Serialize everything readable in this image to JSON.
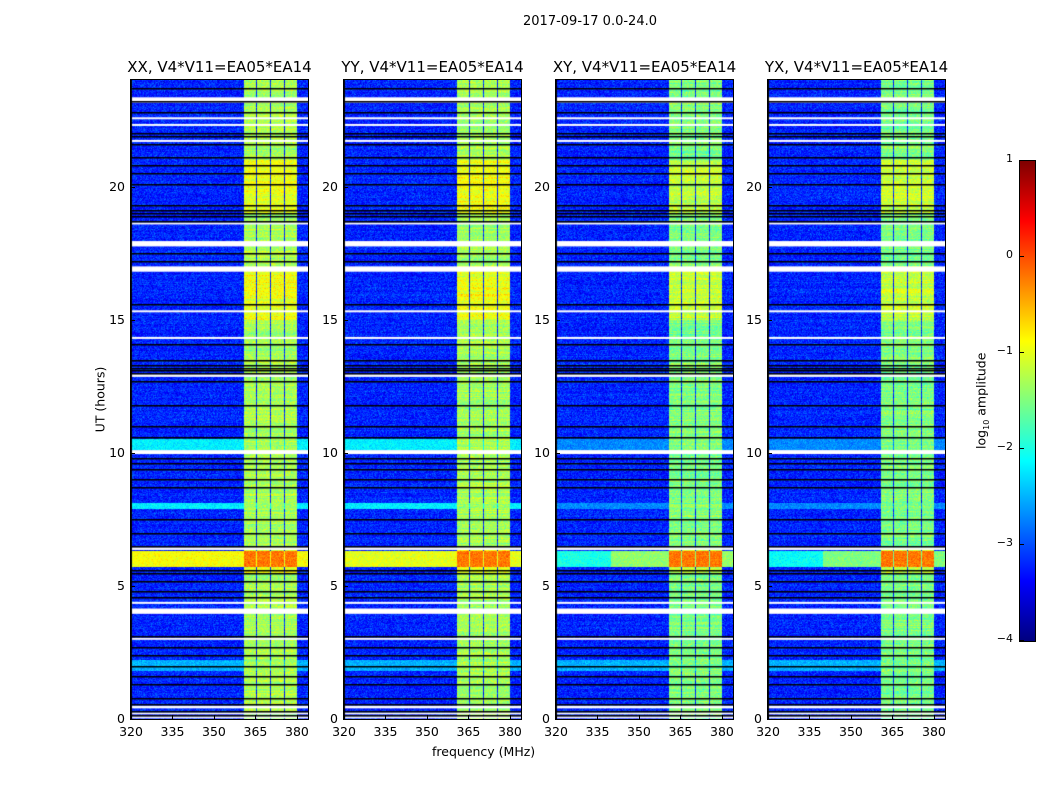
{
  "chart_data": {
    "type": "heatmap",
    "title": "2017-09-17 0.0-24.0",
    "xlabel": "frequency (MHz)",
    "ylabel": "UT (hours)",
    "xlim": [
      320,
      384
    ],
    "ylim": [
      0,
      24
    ],
    "xticks": [
      320,
      335,
      350,
      365,
      380
    ],
    "yticks": [
      0,
      5,
      10,
      15,
      20
    ],
    "colorbar": {
      "label_main": "log",
      "label_sub": "10",
      "label_end": " amplitude",
      "range": [
        -4,
        1
      ],
      "ticks": [
        -4,
        -3,
        -2,
        -1,
        0,
        1
      ],
      "colormap": "jet"
    },
    "panels": [
      {
        "title": "XX, V4*V11=EA05*EA14",
        "band_level": -1.3,
        "event_level": -0.9
      },
      {
        "title": "YY, V4*V11=EA05*EA14",
        "band_level": -1.3,
        "event_level": -1.0
      },
      {
        "title": "XY, V4*V11=EA05*EA14",
        "band_level": -1.5,
        "event_level": -1.4
      },
      {
        "title": "YX, V4*V11=EA05*EA14",
        "band_level": -1.5,
        "event_level": -1.5
      }
    ],
    "background_level": -3.2,
    "band_subbands_mhz": [
      [
        360.8,
        365.2
      ],
      [
        365.6,
        370.2
      ],
      [
        370.6,
        375.3
      ],
      [
        375.7,
        380.2
      ]
    ],
    "rfi_events_hours": [
      [
        5.7,
        6.3
      ],
      [
        7.9,
        8.1
      ],
      [
        10.1,
        10.5
      ]
    ],
    "flagged_white_hours": [
      [
        0.05,
        0.1
      ],
      [
        0.2,
        0.25
      ],
      [
        0.4,
        0.5
      ],
      [
        3.0,
        3.05
      ],
      [
        3.95,
        4.15
      ],
      [
        4.35,
        4.4
      ],
      [
        6.35,
        6.45
      ],
      [
        9.95,
        10.1
      ],
      [
        12.85,
        12.95
      ],
      [
        14.3,
        14.35
      ],
      [
        15.3,
        15.35
      ],
      [
        16.8,
        17.0
      ],
      [
        17.75,
        17.95
      ],
      [
        18.6,
        18.65
      ],
      [
        21.7,
        21.75
      ],
      [
        22.3,
        22.35
      ],
      [
        22.55,
        22.6
      ],
      [
        23.15,
        23.35
      ]
    ],
    "flagged_black_hours": [
      0.15,
      0.3,
      0.55,
      0.8,
      1.3,
      1.6,
      2.0,
      2.4,
      2.7,
      3.1,
      4.6,
      4.8,
      5.2,
      5.5,
      5.6,
      6.5,
      7.0,
      7.5,
      8.7,
      9.0,
      9.4,
      9.6,
      9.8,
      10.6,
      11.0,
      11.8,
      12.7,
      13.0,
      13.1,
      13.2,
      13.3,
      13.5,
      14.1,
      15.6,
      17.2,
      17.5,
      18.7,
      18.9,
      19.0,
      19.1,
      19.3,
      20.1,
      20.5,
      20.8,
      21.1,
      21.6,
      21.9,
      22.0,
      22.8,
      23.2,
      23.7
    ]
  }
}
